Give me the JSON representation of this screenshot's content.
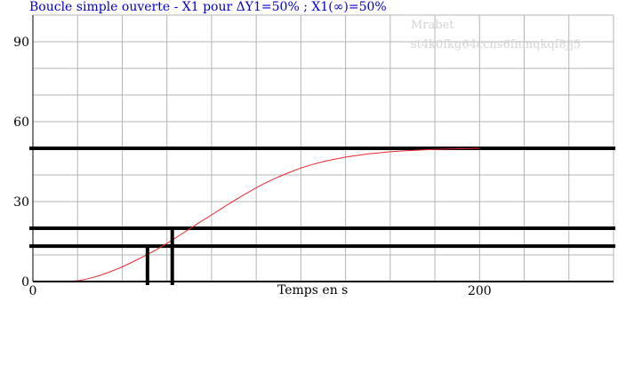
{
  "colors": {
    "title": "#0000cc",
    "curve": "#e8262e",
    "grid": "#b4b4b4",
    "thick": "#000000",
    "watermark": "#d4d4d4"
  },
  "watermark": {
    "line1": "Mrabet",
    "line2": "st4k0fkg64ccns6fnmqkqf8jj5"
  },
  "chart_data": {
    "type": "line",
    "title": "Boucle simple ouverte - X1 pour ΔY1=50% ; X1(∞)=50%",
    "xlabel": "Temps en s",
    "ylabel": "",
    "xlim": [
      0,
      260
    ],
    "ylim": [
      0,
      100
    ],
    "x_ticks": [
      0,
      200
    ],
    "y_ticks": [
      0,
      30,
      60,
      90
    ],
    "grid": true,
    "series": [
      {
        "x": [
          0,
          5,
          10,
          15,
          20,
          25,
          30,
          35,
          40,
          45,
          50,
          55,
          60,
          65,
          70,
          75,
          80,
          85,
          90,
          95,
          100,
          105,
          110,
          115,
          120,
          125,
          130,
          135,
          140,
          145,
          150,
          155,
          160,
          165,
          170,
          175,
          180,
          185,
          190,
          195,
          200
        ],
        "values": [
          0,
          0,
          0,
          0,
          0.3,
          1.1,
          2.3,
          3.8,
          5.5,
          7.5,
          9.6,
          11.8,
          14.3,
          17.0,
          19.7,
          22.4,
          25.0,
          27.7,
          30.3,
          32.8,
          35.2,
          37.4,
          39.3,
          41.0,
          42.6,
          43.9,
          45.0,
          45.9,
          46.7,
          47.3,
          47.9,
          48.3,
          48.7,
          49.0,
          49.2,
          49.4,
          49.6,
          49.7,
          49.8,
          49.9,
          50.0
        ]
      }
    ],
    "horizontal_lines": [
      50,
      20,
      13.3
    ],
    "vertical_lines": [
      {
        "x": 51.3,
        "y_top": 13.3
      },
      {
        "x": 62.4,
        "y_top": 20
      }
    ]
  }
}
